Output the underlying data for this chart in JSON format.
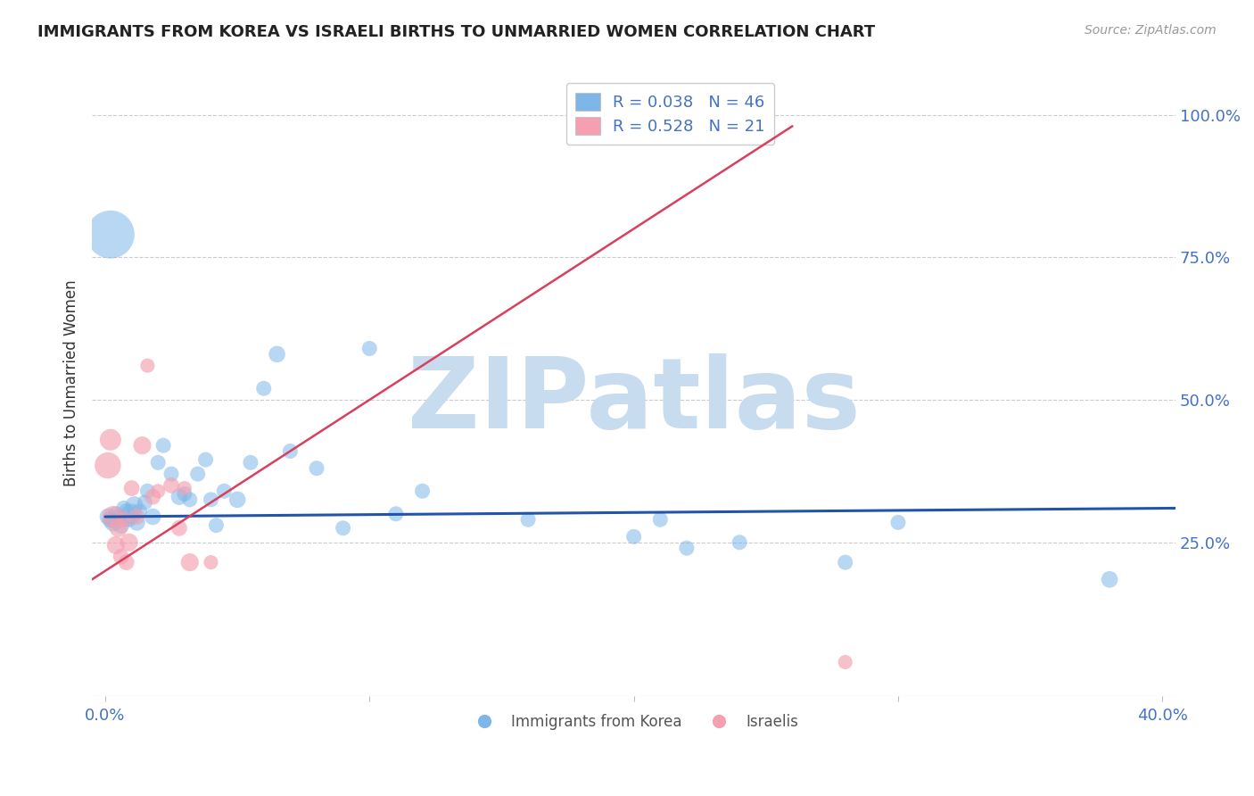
{
  "title": "IMMIGRANTS FROM KOREA VS ISRAELI BIRTHS TO UNMARRIED WOMEN CORRELATION CHART",
  "source_text": "Source: ZipAtlas.com",
  "ylabel": "Births to Unmarried Women",
  "xlim": [
    -0.005,
    0.405
  ],
  "ylim": [
    -0.02,
    1.08
  ],
  "ytick_positions": [
    0.25,
    0.5,
    0.75,
    1.0
  ],
  "ytick_labels": [
    "25.0%",
    "50.0%",
    "75.0%",
    "100.0%"
  ],
  "legend1_label": "R = 0.038   N = 46",
  "legend2_label": "R = 0.528   N = 21",
  "legend_series1": "Immigrants from Korea",
  "legend_series2": "Israelis",
  "blue_color": "#7EB6E8",
  "pink_color": "#F4A0B0",
  "line_blue": "#2255AA",
  "line_pink": "#D94060",
  "watermark": "ZIPatlas",
  "watermark_color": "#C8DCF0",
  "title_fontsize": 13,
  "blue_scatter_x": [
    0.001,
    0.002,
    0.003,
    0.004,
    0.005,
    0.006,
    0.007,
    0.008,
    0.009,
    0.01,
    0.011,
    0.012,
    0.013,
    0.015,
    0.016,
    0.018,
    0.02,
    0.022,
    0.025,
    0.028,
    0.03,
    0.032,
    0.035,
    0.038,
    0.04,
    0.042,
    0.045,
    0.05,
    0.055,
    0.06,
    0.065,
    0.07,
    0.08,
    0.09,
    0.1,
    0.11,
    0.12,
    0.16,
    0.2,
    0.21,
    0.22,
    0.24,
    0.28,
    0.3,
    0.38,
    0.002
  ],
  "blue_scatter_y": [
    0.295,
    0.29,
    0.285,
    0.3,
    0.295,
    0.28,
    0.31,
    0.305,
    0.29,
    0.3,
    0.315,
    0.285,
    0.305,
    0.32,
    0.34,
    0.295,
    0.39,
    0.42,
    0.37,
    0.33,
    0.335,
    0.325,
    0.37,
    0.395,
    0.325,
    0.28,
    0.34,
    0.325,
    0.39,
    0.52,
    0.58,
    0.41,
    0.38,
    0.275,
    0.59,
    0.3,
    0.34,
    0.29,
    0.26,
    0.29,
    0.24,
    0.25,
    0.215,
    0.285,
    0.185,
    0.79
  ],
  "blue_scatter_sizes": [
    60,
    60,
    70,
    50,
    50,
    60,
    50,
    50,
    50,
    90,
    70,
    60,
    50,
    50,
    50,
    60,
    50,
    50,
    50,
    60,
    50,
    50,
    50,
    50,
    50,
    50,
    50,
    60,
    50,
    50,
    60,
    50,
    50,
    50,
    50,
    50,
    50,
    50,
    50,
    50,
    50,
    50,
    50,
    50,
    60,
    500
  ],
  "pink_scatter_x": [
    0.001,
    0.002,
    0.003,
    0.004,
    0.005,
    0.006,
    0.007,
    0.008,
    0.009,
    0.01,
    0.012,
    0.014,
    0.016,
    0.018,
    0.02,
    0.025,
    0.028,
    0.03,
    0.032,
    0.04,
    0.28
  ],
  "pink_scatter_y": [
    0.385,
    0.43,
    0.295,
    0.245,
    0.275,
    0.225,
    0.29,
    0.215,
    0.25,
    0.345,
    0.295,
    0.42,
    0.56,
    0.33,
    0.34,
    0.35,
    0.275,
    0.345,
    0.215,
    0.215,
    0.04
  ],
  "pink_scatter_sizes": [
    150,
    100,
    100,
    70,
    70,
    55,
    55,
    55,
    70,
    55,
    55,
    70,
    45,
    55,
    45,
    55,
    55,
    45,
    70,
    45,
    45
  ],
  "blue_line_x": [
    0.0,
    0.405
  ],
  "blue_line_y": [
    0.295,
    0.31
  ],
  "pink_line_x": [
    -0.005,
    0.26
  ],
  "pink_line_y": [
    0.185,
    0.98
  ]
}
